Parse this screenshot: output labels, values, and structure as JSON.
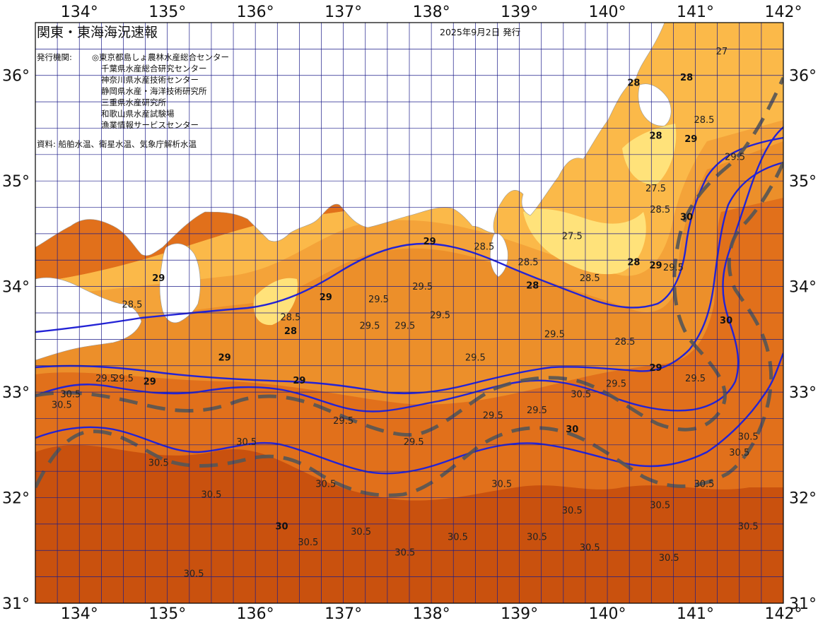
{
  "header": {
    "title": "関東・東海海況速報",
    "date": "2025年9月2日 発行",
    "issuers_label": "発行機関:",
    "issuers": [
      "◎東京都島しょ農林水産総合センター",
      "千葉県水産総合研究センター",
      "神奈川県水産技術センター",
      "静岡県水産・海洋技術研究所",
      "三重県水産研究所",
      "和歌山県水産試験場",
      "漁業情報サービスセンター"
    ],
    "source": "資料: 船舶水温、衛星水温、気象庁解析水温"
  },
  "axes": {
    "lon": [
      "134°",
      "135°",
      "136°",
      "137°",
      "138°",
      "139°",
      "140°",
      "141°",
      "142°"
    ],
    "lat": [
      "36°",
      "35°",
      "34°",
      "33°",
      "32°",
      "31°"
    ]
  },
  "colors": {
    "land": "#ffffff",
    "t27": "#ffe27a",
    "t28": "#fbb949",
    "t29": "#f4a339",
    "t29_5": "#ec8f2a",
    "t30": "#e1701b",
    "t30_5": "#c9510e",
    "grid": "#1c1c8a",
    "iso": "#2323d6",
    "kuroshio": "#555555"
  },
  "isotherm_labels": [
    {
      "t": "29.5",
      "lon": 134.3,
      "lat": 33.1
    },
    {
      "t": "30.5",
      "lon": 133.9,
      "lat": 32.95
    },
    {
      "t": "30.5",
      "lon": 133.8,
      "lat": 32.85
    },
    {
      "t": "29.5",
      "lon": 134.5,
      "lat": 33.1
    },
    {
      "t": "29",
      "lon": 134.8,
      "lat": 33.07
    },
    {
      "t": "30.5",
      "lon": 135.9,
      "lat": 32.5
    },
    {
      "t": "30.5",
      "lon": 134.9,
      "lat": 32.3
    },
    {
      "t": "30.5",
      "lon": 135.5,
      "lat": 32.0
    },
    {
      "t": "30.5",
      "lon": 135.3,
      "lat": 31.25
    },
    {
      "t": "30.5",
      "lon": 136.6,
      "lat": 31.55
    },
    {
      "t": "30.5",
      "lon": 136.8,
      "lat": 32.1
    },
    {
      "t": "30",
      "lon": 136.3,
      "lat": 31.7
    },
    {
      "t": "29",
      "lon": 136.5,
      "lat": 33.08
    },
    {
      "t": "28.5",
      "lon": 136.4,
      "lat": 33.68
    },
    {
      "t": "29.5",
      "lon": 137.3,
      "lat": 33.6
    },
    {
      "t": "29.5",
      "lon": 137.4,
      "lat": 33.85
    },
    {
      "t": "29.5",
      "lon": 137.7,
      "lat": 33.6
    },
    {
      "t": "29.5",
      "lon": 137.9,
      "lat": 33.97
    },
    {
      "t": "29.5",
      "lon": 138.1,
      "lat": 33.7
    },
    {
      "t": "29.5",
      "lon": 137.0,
      "lat": 32.7
    },
    {
      "t": "29.5",
      "lon": 137.8,
      "lat": 32.5
    },
    {
      "t": "29.5",
      "lon": 138.7,
      "lat": 32.75
    },
    {
      "t": "29.5",
      "lon": 139.2,
      "lat": 32.8
    },
    {
      "t": "29.5",
      "lon": 138.5,
      "lat": 33.3
    },
    {
      "t": "29.5",
      "lon": 139.4,
      "lat": 33.52
    },
    {
      "t": "29.5",
      "lon": 140.1,
      "lat": 33.05
    },
    {
      "t": "29.5",
      "lon": 141.0,
      "lat": 33.1
    },
    {
      "t": "30.5",
      "lon": 137.2,
      "lat": 31.65
    },
    {
      "t": "30.5",
      "lon": 137.7,
      "lat": 31.45
    },
    {
      "t": "30.5",
      "lon": 138.3,
      "lat": 31.6
    },
    {
      "t": "30.5",
      "lon": 138.8,
      "lat": 32.1
    },
    {
      "t": "30.5",
      "lon": 139.2,
      "lat": 31.6
    },
    {
      "t": "30.5",
      "lon": 139.6,
      "lat": 31.85
    },
    {
      "t": "30.5",
      "lon": 139.8,
      "lat": 31.5
    },
    {
      "t": "30.5",
      "lon": 140.6,
      "lat": 31.9
    },
    {
      "t": "30.5",
      "lon": 140.7,
      "lat": 31.4
    },
    {
      "t": "30.5",
      "lon": 141.5,
      "lat": 32.4
    },
    {
      "t": "30.5",
      "lon": 141.6,
      "lat": 31.7
    },
    {
      "t": "30.5",
      "lon": 141.6,
      "lat": 32.55
    },
    {
      "t": "30.5",
      "lon": 141.1,
      "lat": 32.1
    },
    {
      "t": "29",
      "lon": 137.98,
      "lat": 34.4
    },
    {
      "t": "28.5",
      "lon": 138.6,
      "lat": 34.35
    },
    {
      "t": "28.5",
      "lon": 139.1,
      "lat": 34.2
    },
    {
      "t": "28",
      "lon": 139.15,
      "lat": 33.98
    },
    {
      "t": "27.5",
      "lon": 139.6,
      "lat": 34.45
    },
    {
      "t": "28.5",
      "lon": 139.8,
      "lat": 34.05
    },
    {
      "t": "28.5",
      "lon": 140.2,
      "lat": 33.45
    },
    {
      "t": "29",
      "lon": 140.55,
      "lat": 33.2
    },
    {
      "t": "28",
      "lon": 140.3,
      "lat": 34.2
    },
    {
      "t": "27.5",
      "lon": 140.55,
      "lat": 34.9
    },
    {
      "t": "28.5",
      "lon": 140.6,
      "lat": 34.7
    },
    {
      "t": "29",
      "lon": 140.55,
      "lat": 34.17
    },
    {
      "t": "29.5",
      "lon": 140.75,
      "lat": 34.15
    },
    {
      "t": "28",
      "lon": 140.55,
      "lat": 35.4
    },
    {
      "t": "29",
      "lon": 140.95,
      "lat": 35.37
    },
    {
      "t": "28.5",
      "lon": 141.1,
      "lat": 35.55
    },
    {
      "t": "29.5",
      "lon": 141.45,
      "lat": 35.2
    },
    {
      "t": "30",
      "lon": 140.9,
      "lat": 34.63
    },
    {
      "t": "30",
      "lon": 141.35,
      "lat": 33.65
    },
    {
      "t": "29",
      "lon": 136.8,
      "lat": 33.87
    },
    {
      "t": "28",
      "lon": 136.4,
      "lat": 33.55
    },
    {
      "t": "29",
      "lon": 135.65,
      "lat": 33.3
    },
    {
      "t": "28.5",
      "lon": 134.6,
      "lat": 33.8
    },
    {
      "t": "29",
      "lon": 134.9,
      "lat": 34.05
    },
    {
      "t": "28",
      "lon": 140.3,
      "lat": 35.9
    },
    {
      "t": "28",
      "lon": 140.9,
      "lat": 35.95
    },
    {
      "t": "27",
      "lon": 141.3,
      "lat": 36.2
    },
    {
      "t": "30.5",
      "lon": 139.7,
      "lat": 32.95
    },
    {
      "t": "30",
      "lon": 139.6,
      "lat": 32.62
    }
  ]
}
